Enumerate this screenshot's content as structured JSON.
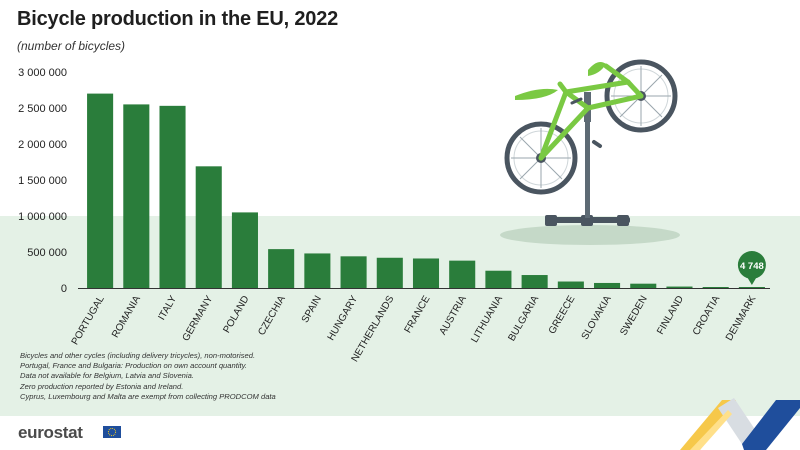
{
  "header": {
    "title": "Bicycle production in the EU, 2022",
    "subtitle": "(number of bicycles)"
  },
  "chart_data": {
    "type": "bar",
    "title": "Bicycle production in the EU, 2022",
    "subtitle": "(number of bicycles)",
    "xlabel": "",
    "ylabel": "",
    "ylim": [
      0,
      3000000
    ],
    "y_ticks": [
      0,
      500000,
      1000000,
      1500000,
      2000000,
      2500000,
      3000000
    ],
    "y_tick_labels": [
      "0",
      "500 000",
      "1 000 000",
      "1 500 000",
      "2 000 000",
      "2 500 000",
      "3 000 000"
    ],
    "grid": false,
    "categories": [
      "PORTUGAL",
      "ROMANIA",
      "ITALY",
      "GERMANY",
      "POLAND",
      "CZECHIA",
      "SPAIN",
      "HUNGARY",
      "NETHERLANDS",
      "FRANCE",
      "AUSTRIA",
      "LITHUANIA",
      "BULGARIA",
      "GREECE",
      "SLOVAKIA",
      "SWEDEN",
      "FINLAND",
      "CROATIA",
      "DENMARK"
    ],
    "values": [
      2700000,
      2550000,
      2530000,
      1690000,
      1050000,
      540000,
      480000,
      440000,
      420000,
      410000,
      380000,
      240000,
      180000,
      90000,
      70000,
      60000,
      20000,
      10000,
      4748
    ],
    "annotations": [
      {
        "category": "DENMARK",
        "text": "4 748"
      }
    ]
  },
  "notes": [
    "Bicycles and other cycles (including delivery tricycles), non-motorised.",
    "Portugal, France and Bulgaria: Production on own account quantity.",
    "Data not available for Belgium, Latvia and Slovenia.",
    "Zero production reported by Estonia and Ireland.",
    "Cyprus, Luxembourg and Malta are exempt from collecting PRODCOM data"
  ],
  "footer": {
    "logo_text": "eurostat"
  },
  "colors": {
    "bar": "#2a7d3b",
    "callout": "#2a7d3b",
    "band_light": "#e4f1e6",
    "bike_frame": "#7ac943",
    "bike_dark": "#4a5560"
  },
  "icons": [
    "bicycle-illustration",
    "eu-flag-icon",
    "corner-ribbon-decoration"
  ]
}
